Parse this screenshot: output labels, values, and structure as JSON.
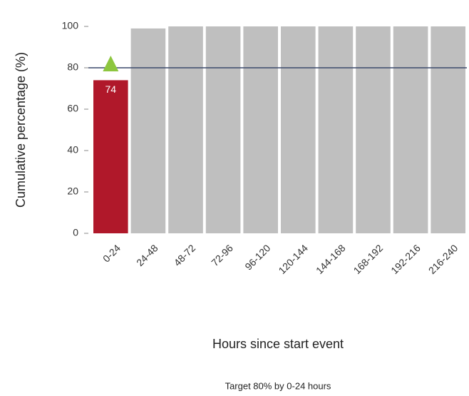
{
  "chart_data": {
    "type": "bar",
    "y_label": "Cumulative percentage (%)",
    "x_label": "Hours since start event",
    "footnote": "Target 80% by 0-24 hours",
    "categories": [
      "0-24",
      "24-48",
      "48-72",
      "72-96",
      "96-120",
      "120-144",
      "144-168",
      "168-192",
      "192-216",
      "216-240"
    ],
    "values": [
      74,
      99,
      100,
      100,
      100,
      100,
      100,
      100,
      100,
      100
    ],
    "value_labels": [
      "74",
      null,
      null,
      null,
      null,
      null,
      null,
      null,
      null,
      null
    ],
    "colors": [
      "#b0182a",
      "#bfbfbf",
      "#bfbfbf",
      "#bfbfbf",
      "#bfbfbf",
      "#bfbfbf",
      "#bfbfbf",
      "#bfbfbf",
      "#bfbfbf",
      "#bfbfbf"
    ],
    "target": 80,
    "target_color": "#3b4a6b",
    "marker_color": "#8dc63f",
    "ylim": [
      0,
      100
    ],
    "yticks": [
      0,
      20,
      40,
      60,
      80,
      100
    ]
  }
}
